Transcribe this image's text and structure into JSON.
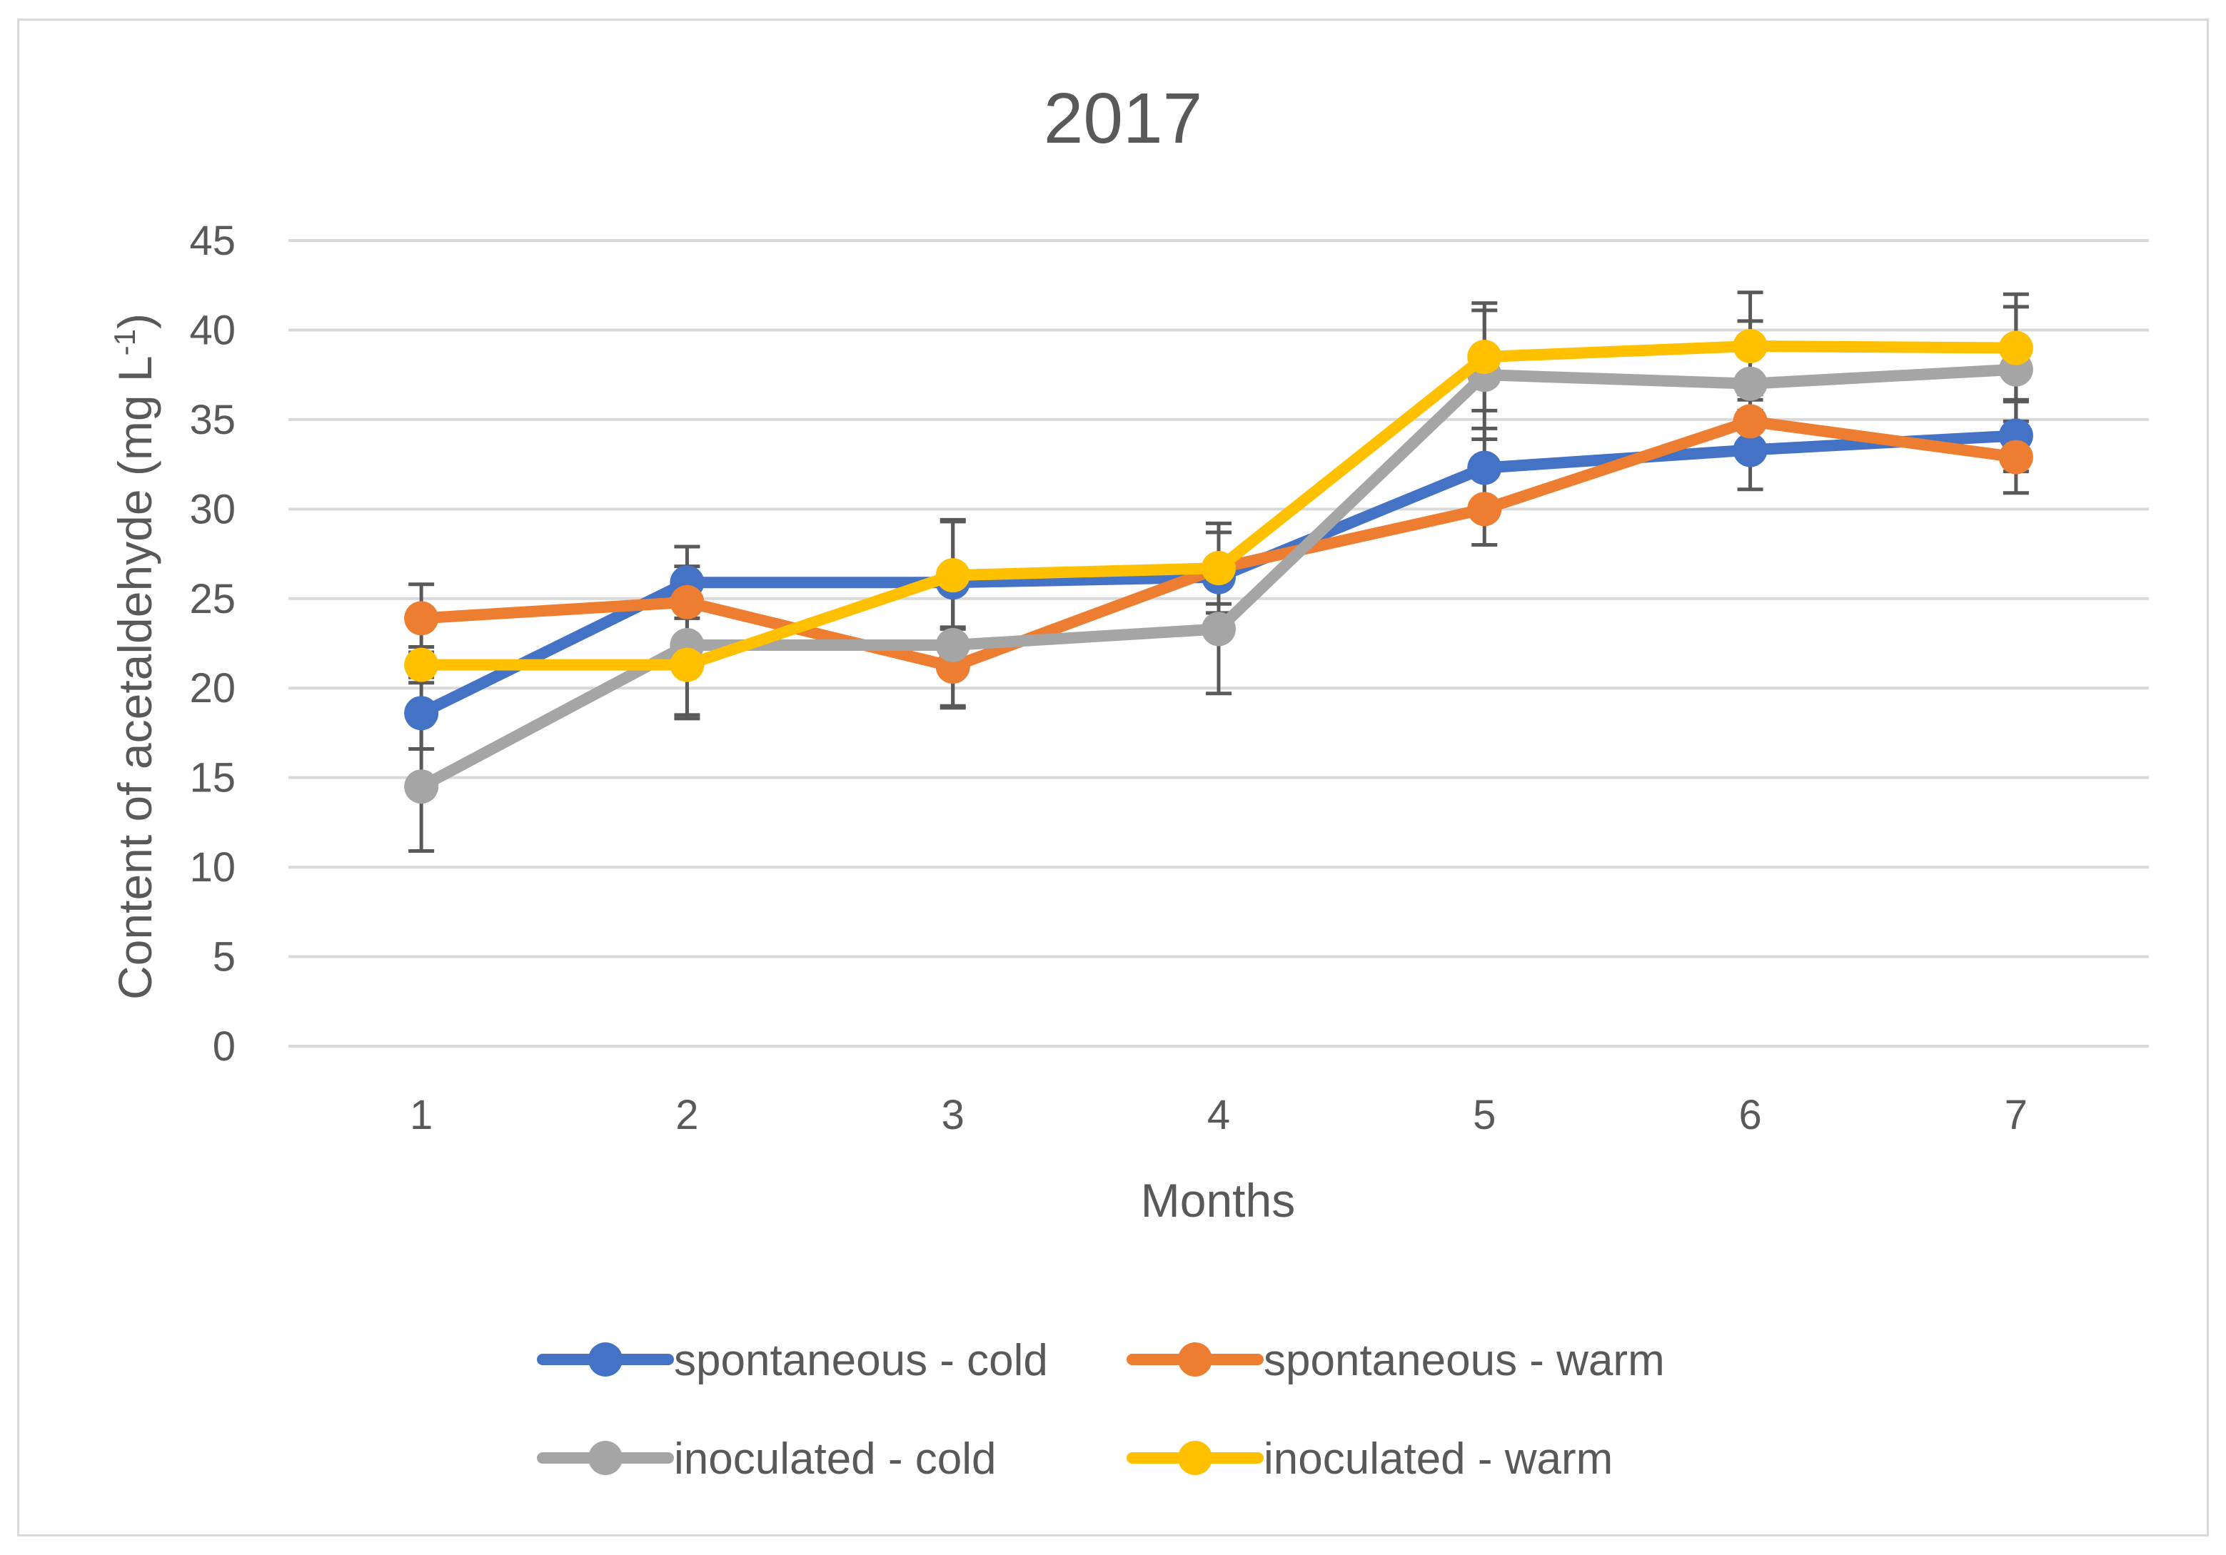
{
  "chart_data": {
    "type": "line",
    "title": "2017",
    "xlabel": "Months",
    "ylabel": "Content of acetaldehyde (mg L",
    "ylabel_sup": "-1",
    "ylabel_end": ")",
    "x": [
      1,
      2,
      3,
      4,
      5,
      6,
      7
    ],
    "x_tick_labels": [
      "1",
      "2",
      "3",
      "4",
      "5",
      "6",
      "7"
    ],
    "ylim": [
      0,
      45
    ],
    "y_ticks": [
      0,
      5,
      10,
      15,
      20,
      25,
      30,
      35,
      40,
      45
    ],
    "grid": true,
    "legend_position": "bottom",
    "series": [
      {
        "name": "spontaneous - cold",
        "color": "#4472c4",
        "values": [
          18.6,
          25.9,
          25.9,
          26.2,
          32.3,
          33.3,
          34.1
        ],
        "error": [
          2.0,
          2.0,
          3.5,
          2.5,
          2.2,
          2.2,
          2.0
        ]
      },
      {
        "name": "spontaneous - warm",
        "color": "#ed7d31",
        "values": [
          23.9,
          24.8,
          21.2,
          26.7,
          30.0,
          34.9,
          32.9
        ],
        "error": [
          1.9,
          2.0,
          2.2,
          2.5,
          2.0,
          1.5,
          2.0
        ]
      },
      {
        "name": "inoculated - cold",
        "color": "#a5a5a5",
        "values": [
          14.5,
          22.4,
          22.4,
          23.3,
          37.5,
          37.0,
          37.8
        ],
        "error": [
          3.6,
          3.9,
          3.5,
          3.6,
          3.6,
          3.5,
          3.5
        ]
      },
      {
        "name": "inoculated - warm",
        "color": "#ffc000",
        "values": [
          21.3,
          21.3,
          26.3,
          26.7,
          38.5,
          39.1,
          39.0
        ],
        "error": [
          1.0,
          3.0,
          3.0,
          2.0,
          3.0,
          3.0,
          3.0
        ]
      }
    ]
  },
  "style": {
    "grid_color": "#d9d9d9",
    "axis_color": "#d9d9d9",
    "error_bar_color": "#595959"
  }
}
